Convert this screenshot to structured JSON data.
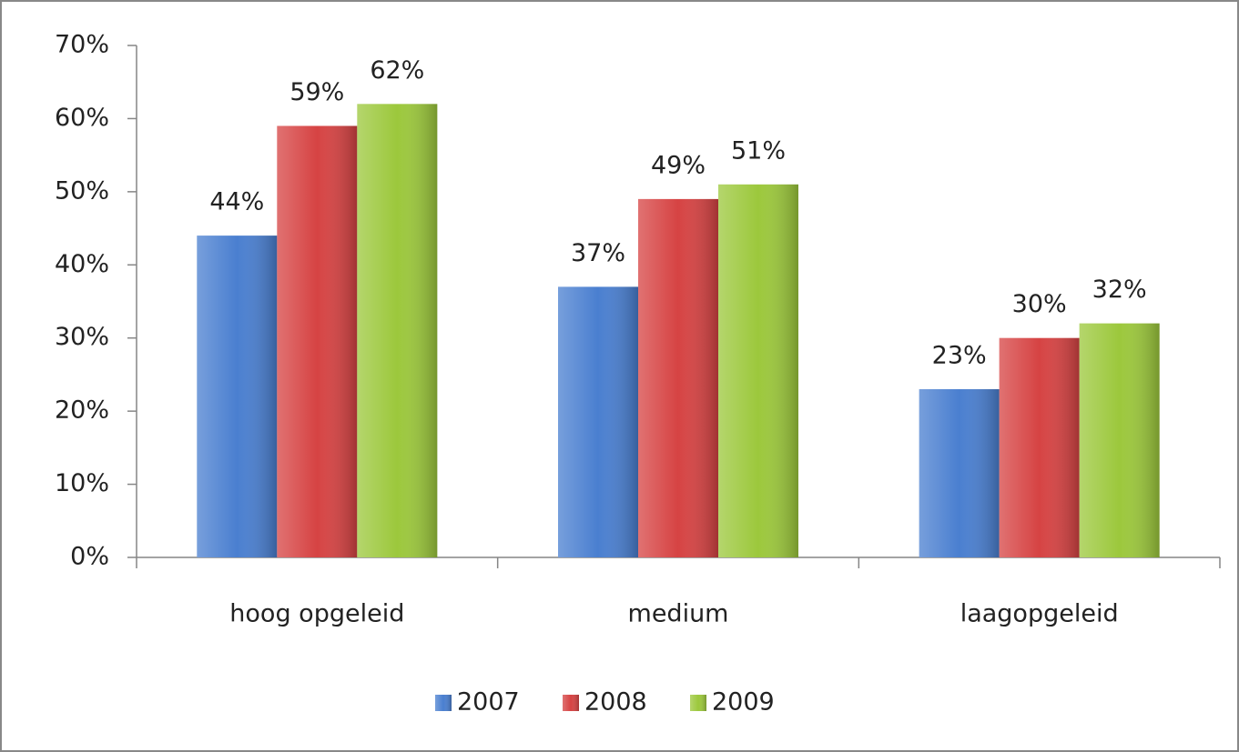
{
  "chart_data": {
    "type": "bar",
    "categories": [
      "hoog opgeleid",
      "medium",
      "laagopgeleid"
    ],
    "series": [
      {
        "name": "2007",
        "color": "#4a7fd0",
        "values": [
          44,
          37,
          23
        ],
        "value_labels": [
          "44%",
          "37%",
          "23%"
        ]
      },
      {
        "name": "2008",
        "color": "#d64343",
        "values": [
          59,
          49,
          30
        ],
        "value_labels": [
          "59%",
          "49%",
          "30%"
        ]
      },
      {
        "name": "2009",
        "color": "#9cc83c",
        "values": [
          62,
          51,
          32
        ],
        "value_labels": [
          "62%",
          "51%",
          "32%"
        ]
      }
    ],
    "ylim": [
      0,
      70
    ],
    "yticks": [
      {
        "value": 0,
        "label": "0%"
      },
      {
        "value": 10,
        "label": "10%"
      },
      {
        "value": 20,
        "label": "20%"
      },
      {
        "value": 30,
        "label": "30%"
      },
      {
        "value": 40,
        "label": "40%"
      },
      {
        "value": 50,
        "label": "50%"
      },
      {
        "value": 60,
        "label": "60%"
      },
      {
        "value": 70,
        "label": "70%"
      }
    ],
    "grid": false,
    "legend": "bottom"
  }
}
